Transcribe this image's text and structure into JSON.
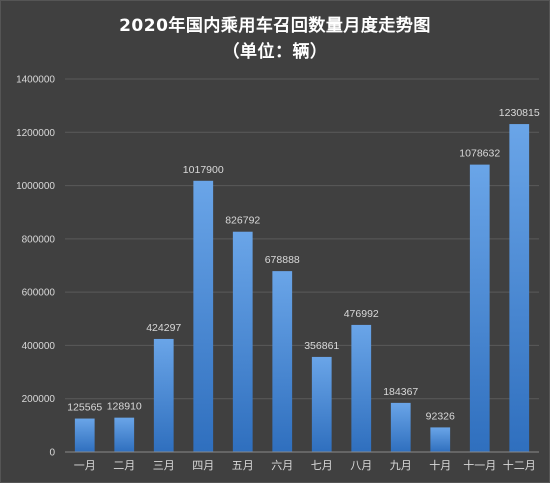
{
  "chart_data": {
    "type": "bar",
    "title": "2020年国内乘用车召回数量月度走势图",
    "subtitle": "（单位：辆）",
    "xlabel": "",
    "ylabel": "",
    "categories": [
      "一月",
      "二月",
      "三月",
      "四月",
      "五月",
      "六月",
      "七月",
      "八月",
      "九月",
      "十月",
      "十一月",
      "十二月"
    ],
    "values": [
      125565,
      128910,
      424297,
      1017900,
      826792,
      678888,
      356861,
      476992,
      184367,
      92326,
      1078632,
      1230815
    ],
    "ylim": [
      0,
      1400000
    ],
    "yticks": [
      "0",
      "200000",
      "400000",
      "600000",
      "800000",
      "1000000",
      "1200000",
      "1400000"
    ],
    "grid": true,
    "legend": "none",
    "colors": {
      "bar_top": "#6aa5e8",
      "bar_bottom": "#2f6fbe",
      "background": "#404040",
      "gridline": "#5a5a5a",
      "text": "#d9d9d9",
      "title": "#ffffff"
    }
  }
}
